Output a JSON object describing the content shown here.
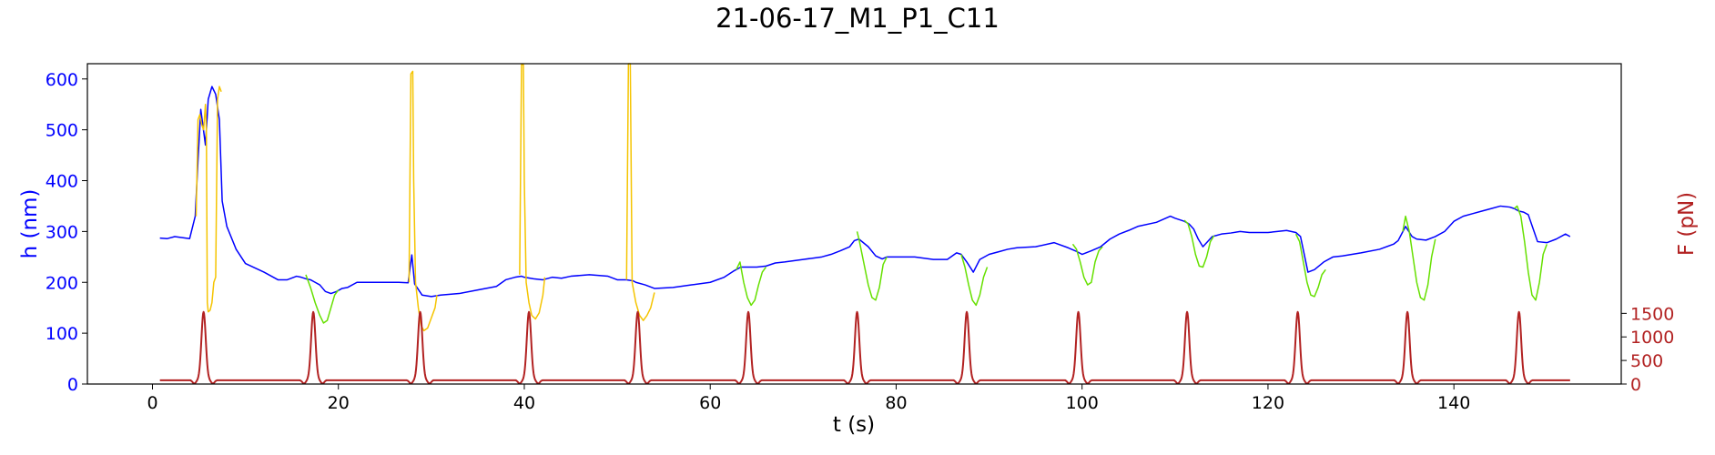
{
  "chart_data": {
    "type": "line",
    "title": "21-06-17_M1_P1_C11",
    "xlabel": "t (s)",
    "ylabel_left": "h (nm)",
    "ylabel_right": "F (pN)",
    "xlim": [
      -7,
      158
    ],
    "ylim_left": [
      0,
      630
    ],
    "ylim_right": [
      0,
      6800
    ],
    "x_ticks": [
      0,
      20,
      40,
      60,
      80,
      100,
      120,
      140
    ],
    "y_left_ticks": [
      0,
      100,
      200,
      300,
      400,
      500,
      600
    ],
    "y_right_ticks": [
      0,
      500,
      1000,
      1500
    ],
    "grid": false,
    "legend": "none",
    "colors": {
      "height": "#0000ff",
      "height_large": "#f5c400",
      "height_small": "#66e000",
      "force": "#b22222",
      "left_axis": "#0000ff",
      "right_axis": "#b22222"
    },
    "series": [
      {
        "role": "height",
        "points": [
          [
            0.8,
            287
          ],
          [
            1.6,
            286
          ],
          [
            2.4,
            290
          ],
          [
            3.2,
            288
          ],
          [
            4.0,
            286
          ],
          [
            4.6,
            330
          ],
          [
            4.9,
            440
          ],
          [
            5.2,
            540
          ],
          [
            5.7,
            470
          ],
          [
            6.0,
            560
          ],
          [
            6.4,
            585
          ],
          [
            6.8,
            570
          ],
          [
            7.2,
            520
          ],
          [
            7.5,
            360
          ],
          [
            8.0,
            310
          ],
          [
            9.0,
            265
          ],
          [
            10.0,
            237
          ],
          [
            12.0,
            220
          ],
          [
            13.5,
            205
          ],
          [
            14.5,
            205
          ],
          [
            15.5,
            212
          ],
          [
            16.0,
            210
          ],
          [
            16.5,
            207
          ],
          [
            17.0,
            205
          ],
          [
            17.5,
            200
          ],
          [
            18.0,
            195
          ],
          [
            18.6,
            182
          ],
          [
            19.2,
            178
          ],
          [
            19.8,
            182
          ],
          [
            20.4,
            188
          ],
          [
            21.0,
            190
          ],
          [
            22.0,
            200
          ],
          [
            24.0,
            200
          ],
          [
            26.5,
            200
          ],
          [
            27.5,
            199
          ],
          [
            27.9,
            254
          ],
          [
            28.2,
            197
          ],
          [
            29.0,
            175
          ],
          [
            30.0,
            172
          ],
          [
            31.0,
            175
          ],
          [
            33.0,
            178
          ],
          [
            35.0,
            185
          ],
          [
            37.0,
            192
          ],
          [
            38.0,
            205
          ],
          [
            39.0,
            210
          ],
          [
            39.7,
            212
          ],
          [
            40.0,
            210
          ],
          [
            41.0,
            207
          ],
          [
            42.0,
            205
          ],
          [
            43.0,
            210
          ],
          [
            44.0,
            208
          ],
          [
            45.0,
            212
          ],
          [
            47.0,
            215
          ],
          [
            49.0,
            212
          ],
          [
            50.0,
            205
          ],
          [
            51.0,
            205
          ],
          [
            51.7,
            203
          ],
          [
            52.0,
            200
          ],
          [
            53.0,
            195
          ],
          [
            54.0,
            188
          ],
          [
            56.0,
            190
          ],
          [
            58.0,
            195
          ],
          [
            60.0,
            200
          ],
          [
            61.5,
            210
          ],
          [
            62.5,
            222
          ],
          [
            63.3,
            230
          ],
          [
            64.0,
            230
          ],
          [
            65.0,
            230
          ],
          [
            66.0,
            232
          ],
          [
            67.0,
            238
          ],
          [
            68.0,
            240
          ],
          [
            70.0,
            245
          ],
          [
            72.0,
            250
          ],
          [
            73.0,
            255
          ],
          [
            74.0,
            262
          ],
          [
            75.0,
            270
          ],
          [
            75.5,
            282
          ],
          [
            76.0,
            285
          ],
          [
            77.0,
            270
          ],
          [
            77.8,
            252
          ],
          [
            78.5,
            246
          ],
          [
            79.0,
            250
          ],
          [
            80.0,
            250
          ],
          [
            82.0,
            250
          ],
          [
            84.0,
            245
          ],
          [
            85.5,
            245
          ],
          [
            86.5,
            258
          ],
          [
            87.0,
            255
          ],
          [
            87.6,
            240
          ],
          [
            88.3,
            220
          ],
          [
            89.0,
            245
          ],
          [
            90.0,
            255
          ],
          [
            91.0,
            260
          ],
          [
            92.0,
            265
          ],
          [
            93.0,
            268
          ],
          [
            95.0,
            270
          ],
          [
            97.0,
            278
          ],
          [
            98.5,
            268
          ],
          [
            99.5,
            260
          ],
          [
            100.0,
            255
          ],
          [
            101.0,
            262
          ],
          [
            102.0,
            270
          ],
          [
            103.0,
            285
          ],
          [
            104.0,
            295
          ],
          [
            105.0,
            302
          ],
          [
            106.0,
            310
          ],
          [
            108.0,
            318
          ],
          [
            109.5,
            330
          ],
          [
            110.0,
            326
          ],
          [
            111.0,
            320
          ],
          [
            111.5,
            315
          ],
          [
            112.0,
            305
          ],
          [
            112.5,
            285
          ],
          [
            113.0,
            270
          ],
          [
            114.0,
            290
          ],
          [
            115.0,
            295
          ],
          [
            116.0,
            297
          ],
          [
            117.0,
            300
          ],
          [
            118.0,
            298
          ],
          [
            120.0,
            298
          ],
          [
            121.0,
            300
          ],
          [
            122.0,
            302
          ],
          [
            123.0,
            298
          ],
          [
            123.5,
            290
          ],
          [
            124.3,
            220
          ],
          [
            125.0,
            225
          ],
          [
            126.0,
            240
          ],
          [
            127.0,
            250
          ],
          [
            128.0,
            252
          ],
          [
            130.0,
            258
          ],
          [
            132.0,
            265
          ],
          [
            133.5,
            275
          ],
          [
            134.0,
            282
          ],
          [
            134.8,
            310
          ],
          [
            135.5,
            290
          ],
          [
            136.0,
            285
          ],
          [
            137.0,
            283
          ],
          [
            138.0,
            290
          ],
          [
            139.0,
            300
          ],
          [
            140.0,
            320
          ],
          [
            141.0,
            330
          ],
          [
            142.0,
            335
          ],
          [
            143.0,
            340
          ],
          [
            144.0,
            345
          ],
          [
            145.0,
            350
          ],
          [
            146.0,
            348
          ],
          [
            146.5,
            345
          ],
          [
            147.0,
            340
          ],
          [
            147.5,
            338
          ],
          [
            148.0,
            333
          ],
          [
            149.0,
            280
          ],
          [
            150.0,
            278
          ],
          [
            151.0,
            285
          ],
          [
            152.0,
            295
          ],
          [
            152.5,
            290
          ]
        ]
      },
      {
        "role": "height_large",
        "points": [
          [
            4.7,
            330
          ],
          [
            4.9,
            520
          ],
          [
            5.1,
            530
          ],
          [
            5.3,
            510
          ],
          [
            5.5,
            500
          ],
          [
            5.7,
            550
          ],
          [
            5.8,
            500
          ],
          [
            5.9,
            160
          ],
          [
            6.0,
            142
          ],
          [
            6.2,
            145
          ],
          [
            6.4,
            160
          ],
          [
            6.6,
            200
          ],
          [
            6.8,
            210
          ],
          [
            7.0,
            560
          ],
          [
            7.2,
            585
          ],
          [
            7.4,
            575
          ],
          [
            27.6,
            200
          ],
          [
            27.8,
            610
          ],
          [
            28.0,
            615
          ],
          [
            28.1,
            400
          ],
          [
            28.3,
            200
          ],
          [
            28.6,
            150
          ],
          [
            28.9,
            115
          ],
          [
            29.2,
            105
          ],
          [
            29.6,
            110
          ],
          [
            30.0,
            130
          ],
          [
            30.4,
            150
          ],
          [
            30.6,
            175
          ],
          [
            39.5,
            215
          ],
          [
            39.7,
            628
          ],
          [
            39.9,
            628
          ],
          [
            40.0,
            400
          ],
          [
            40.2,
            200
          ],
          [
            40.5,
            160
          ],
          [
            40.8,
            135
          ],
          [
            41.2,
            128
          ],
          [
            41.6,
            140
          ],
          [
            42.0,
            175
          ],
          [
            42.2,
            210
          ],
          [
            51.0,
            205
          ],
          [
            51.2,
            630
          ],
          [
            51.4,
            630
          ],
          [
            51.6,
            200
          ],
          [
            52.0,
            160
          ],
          [
            52.4,
            135
          ],
          [
            52.8,
            125
          ],
          [
            53.2,
            135
          ],
          [
            53.6,
            150
          ],
          [
            54.0,
            180
          ]
        ]
      },
      {
        "role": "height_small",
        "points": [
          [
            16.5,
            215
          ],
          [
            17.0,
            190
          ],
          [
            17.5,
            160
          ],
          [
            18.0,
            135
          ],
          [
            18.4,
            120
          ],
          [
            18.8,
            125
          ],
          [
            19.2,
            150
          ],
          [
            19.6,
            175
          ],
          [
            20.0,
            185
          ],
          [
            62.8,
            225
          ],
          [
            63.2,
            240
          ],
          [
            63.6,
            200
          ],
          [
            64.0,
            170
          ],
          [
            64.4,
            155
          ],
          [
            64.8,
            165
          ],
          [
            65.2,
            195
          ],
          [
            65.6,
            220
          ],
          [
            66.0,
            230
          ],
          [
            75.8,
            300
          ],
          [
            76.0,
            285
          ],
          [
            76.5,
            240
          ],
          [
            77.0,
            195
          ],
          [
            77.4,
            170
          ],
          [
            77.8,
            165
          ],
          [
            78.2,
            190
          ],
          [
            78.6,
            235
          ],
          [
            79.0,
            250
          ],
          [
            87.0,
            255
          ],
          [
            87.4,
            230
          ],
          [
            87.8,
            195
          ],
          [
            88.2,
            165
          ],
          [
            88.6,
            155
          ],
          [
            89.0,
            175
          ],
          [
            89.4,
            210
          ],
          [
            89.8,
            230
          ],
          [
            99.0,
            275
          ],
          [
            99.4,
            265
          ],
          [
            99.8,
            240
          ],
          [
            100.2,
            210
          ],
          [
            100.6,
            195
          ],
          [
            101.0,
            200
          ],
          [
            101.4,
            240
          ],
          [
            101.8,
            262
          ],
          [
            102.2,
            270
          ],
          [
            111.0,
            322
          ],
          [
            111.4,
            315
          ],
          [
            111.8,
            290
          ],
          [
            112.2,
            255
          ],
          [
            112.6,
            232
          ],
          [
            113.0,
            230
          ],
          [
            113.4,
            250
          ],
          [
            113.8,
            280
          ],
          [
            114.2,
            292
          ],
          [
            123.0,
            295
          ],
          [
            123.4,
            280
          ],
          [
            123.8,
            240
          ],
          [
            124.2,
            200
          ],
          [
            124.6,
            175
          ],
          [
            125.0,
            172
          ],
          [
            125.4,
            190
          ],
          [
            125.8,
            215
          ],
          [
            126.2,
            225
          ],
          [
            134.5,
            300
          ],
          [
            134.8,
            330
          ],
          [
            135.2,
            300
          ],
          [
            135.6,
            250
          ],
          [
            136.0,
            200
          ],
          [
            136.4,
            170
          ],
          [
            136.8,
            165
          ],
          [
            137.2,
            195
          ],
          [
            137.6,
            250
          ],
          [
            138.0,
            285
          ],
          [
            146.5,
            345
          ],
          [
            146.8,
            350
          ],
          [
            147.2,
            330
          ],
          [
            147.6,
            280
          ],
          [
            148.0,
            220
          ],
          [
            148.4,
            175
          ],
          [
            148.8,
            165
          ],
          [
            149.2,
            200
          ],
          [
            149.6,
            255
          ],
          [
            150.0,
            275
          ]
        ]
      },
      {
        "role": "force",
        "pulse_centers": [
          5.5,
          17.3,
          28.8,
          40.5,
          52.2,
          64.1,
          75.8,
          87.6,
          99.6,
          111.3,
          123.2,
          135.0,
          147.0
        ],
        "pulse_peak": 1450,
        "pulse_width": 0.55,
        "baseline": 80,
        "x_range": [
          0.8,
          152.5
        ]
      }
    ]
  }
}
